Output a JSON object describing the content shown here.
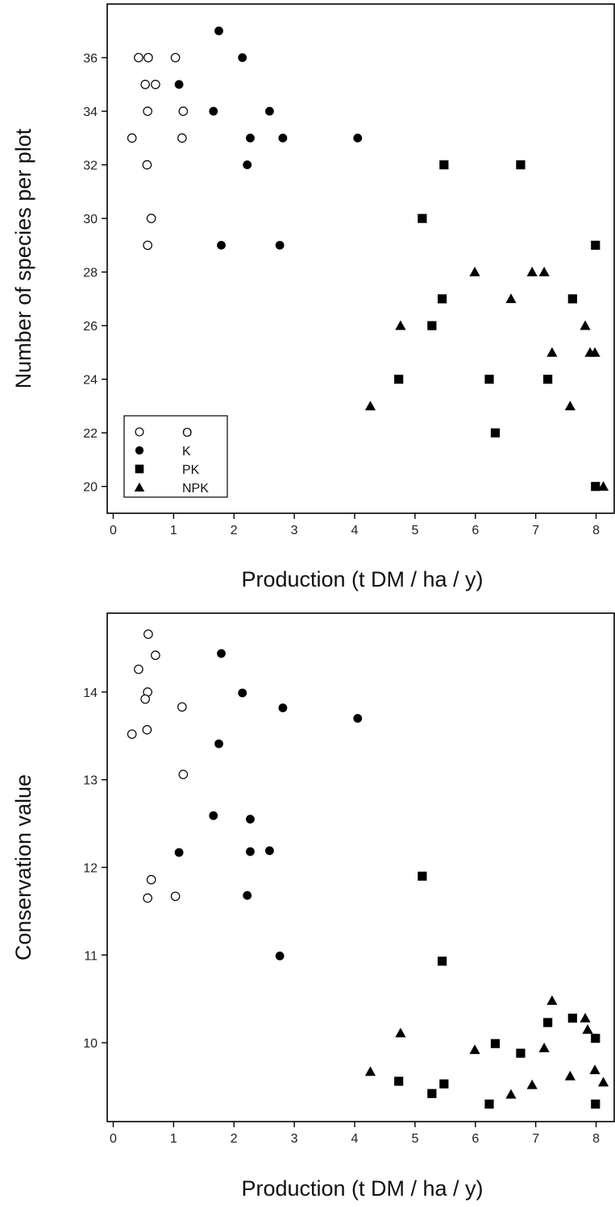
{
  "chart_data": [
    {
      "type": "scatter",
      "xlabel": "Production (t DM / ha / y)",
      "ylabel": "Number of species per plot",
      "xlim": [
        -0.1,
        8.3
      ],
      "ylim": [
        19,
        38
      ],
      "xticks": [
        0,
        1,
        2,
        3,
        4,
        5,
        6,
        7,
        8
      ],
      "yticks": [
        20,
        22,
        24,
        26,
        28,
        30,
        32,
        34,
        36
      ],
      "grid": false,
      "legend": "bottom-left",
      "series": [
        {
          "name": "O",
          "marker": "open-circle",
          "points": [
            {
              "x": 0.42,
              "y": 36
            },
            {
              "x": 0.58,
              "y": 36
            },
            {
              "x": 1.03,
              "y": 36
            },
            {
              "x": 0.53,
              "y": 35
            },
            {
              "x": 0.7,
              "y": 35
            },
            {
              "x": 0.57,
              "y": 34
            },
            {
              "x": 1.16,
              "y": 34
            },
            {
              "x": 0.31,
              "y": 33
            },
            {
              "x": 1.14,
              "y": 33
            },
            {
              "x": 0.56,
              "y": 32
            },
            {
              "x": 0.63,
              "y": 30
            },
            {
              "x": 0.57,
              "y": 29
            }
          ]
        },
        {
          "name": "K",
          "marker": "filled-circle",
          "points": [
            {
              "x": 1.75,
              "y": 37
            },
            {
              "x": 2.14,
              "y": 36
            },
            {
              "x": 1.09,
              "y": 35
            },
            {
              "x": 1.66,
              "y": 34
            },
            {
              "x": 2.59,
              "y": 34
            },
            {
              "x": 2.27,
              "y": 33
            },
            {
              "x": 2.81,
              "y": 33
            },
            {
              "x": 4.05,
              "y": 33
            },
            {
              "x": 2.22,
              "y": 32
            },
            {
              "x": 1.79,
              "y": 29
            },
            {
              "x": 2.76,
              "y": 29
            }
          ]
        },
        {
          "name": "PK",
          "marker": "filled-square",
          "points": [
            {
              "x": 5.48,
              "y": 32
            },
            {
              "x": 6.75,
              "y": 32
            },
            {
              "x": 5.12,
              "y": 30
            },
            {
              "x": 7.99,
              "y": 29
            },
            {
              "x": 5.45,
              "y": 27
            },
            {
              "x": 7.61,
              "y": 27
            },
            {
              "x": 5.28,
              "y": 26
            },
            {
              "x": 4.73,
              "y": 24
            },
            {
              "x": 6.23,
              "y": 24
            },
            {
              "x": 7.2,
              "y": 24
            },
            {
              "x": 6.33,
              "y": 22
            },
            {
              "x": 7.99,
              "y": 20
            }
          ]
        },
        {
          "name": "NPK",
          "marker": "filled-triangle",
          "points": [
            {
              "x": 5.99,
              "y": 28
            },
            {
              "x": 6.94,
              "y": 28
            },
            {
              "x": 7.14,
              "y": 28
            },
            {
              "x": 6.59,
              "y": 27
            },
            {
              "x": 4.76,
              "y": 26
            },
            {
              "x": 7.82,
              "y": 26
            },
            {
              "x": 7.27,
              "y": 25
            },
            {
              "x": 7.9,
              "y": 25
            },
            {
              "x": 7.98,
              "y": 25
            },
            {
              "x": 4.26,
              "y": 23
            },
            {
              "x": 7.57,
              "y": 23
            },
            {
              "x": 8.12,
              "y": 20
            }
          ]
        }
      ]
    },
    {
      "type": "scatter",
      "xlabel": "Production (t DM / ha / y)",
      "ylabel": "Conservation value",
      "xlim": [
        -0.1,
        8.3
      ],
      "ylim": [
        9.1,
        14.9
      ],
      "xticks": [
        0,
        1,
        2,
        3,
        4,
        5,
        6,
        7,
        8
      ],
      "yticks": [
        10,
        11,
        12,
        13,
        14
      ],
      "grid": false,
      "series": [
        {
          "name": "O",
          "marker": "open-circle",
          "points": [
            {
              "x": 0.58,
              "y": 14.66
            },
            {
              "x": 0.7,
              "y": 14.42
            },
            {
              "x": 0.42,
              "y": 14.26
            },
            {
              "x": 0.57,
              "y": 14.0
            },
            {
              "x": 0.53,
              "y": 13.92
            },
            {
              "x": 1.14,
              "y": 13.83
            },
            {
              "x": 0.56,
              "y": 13.57
            },
            {
              "x": 0.31,
              "y": 13.52
            },
            {
              "x": 1.16,
              "y": 13.06
            },
            {
              "x": 0.63,
              "y": 11.86
            },
            {
              "x": 1.03,
              "y": 11.67
            },
            {
              "x": 0.57,
              "y": 11.65
            }
          ]
        },
        {
          "name": "K",
          "marker": "filled-circle",
          "points": [
            {
              "x": 1.79,
              "y": 14.44
            },
            {
              "x": 2.14,
              "y": 13.99
            },
            {
              "x": 2.81,
              "y": 13.82
            },
            {
              "x": 4.05,
              "y": 13.7
            },
            {
              "x": 1.75,
              "y": 13.41
            },
            {
              "x": 1.66,
              "y": 12.59
            },
            {
              "x": 2.27,
              "y": 12.55
            },
            {
              "x": 1.09,
              "y": 12.17
            },
            {
              "x": 2.27,
              "y": 12.18
            },
            {
              "x": 2.59,
              "y": 12.19
            },
            {
              "x": 2.22,
              "y": 11.68
            },
            {
              "x": 2.76,
              "y": 10.99
            }
          ]
        },
        {
          "name": "PK",
          "marker": "filled-square",
          "points": [
            {
              "x": 5.12,
              "y": 11.9
            },
            {
              "x": 5.45,
              "y": 10.93
            },
            {
              "x": 7.61,
              "y": 10.28
            },
            {
              "x": 7.2,
              "y": 10.23
            },
            {
              "x": 7.99,
              "y": 10.05
            },
            {
              "x": 6.33,
              "y": 9.99
            },
            {
              "x": 6.75,
              "y": 9.88
            },
            {
              "x": 4.73,
              "y": 9.56
            },
            {
              "x": 5.48,
              "y": 9.53
            },
            {
              "x": 5.28,
              "y": 9.42
            },
            {
              "x": 6.23,
              "y": 9.3
            },
            {
              "x": 7.99,
              "y": 9.3
            }
          ]
        },
        {
          "name": "NPK",
          "marker": "filled-triangle",
          "points": [
            {
              "x": 7.27,
              "y": 10.48
            },
            {
              "x": 7.82,
              "y": 10.28
            },
            {
              "x": 7.86,
              "y": 10.15
            },
            {
              "x": 4.76,
              "y": 10.11
            },
            {
              "x": 7.14,
              "y": 9.94
            },
            {
              "x": 5.99,
              "y": 9.92
            },
            {
              "x": 7.98,
              "y": 9.69
            },
            {
              "x": 4.26,
              "y": 9.67
            },
            {
              "x": 7.57,
              "y": 9.62
            },
            {
              "x": 8.12,
              "y": 9.55
            },
            {
              "x": 6.94,
              "y": 9.52
            },
            {
              "x": 6.59,
              "y": 9.41
            }
          ]
        }
      ]
    }
  ]
}
